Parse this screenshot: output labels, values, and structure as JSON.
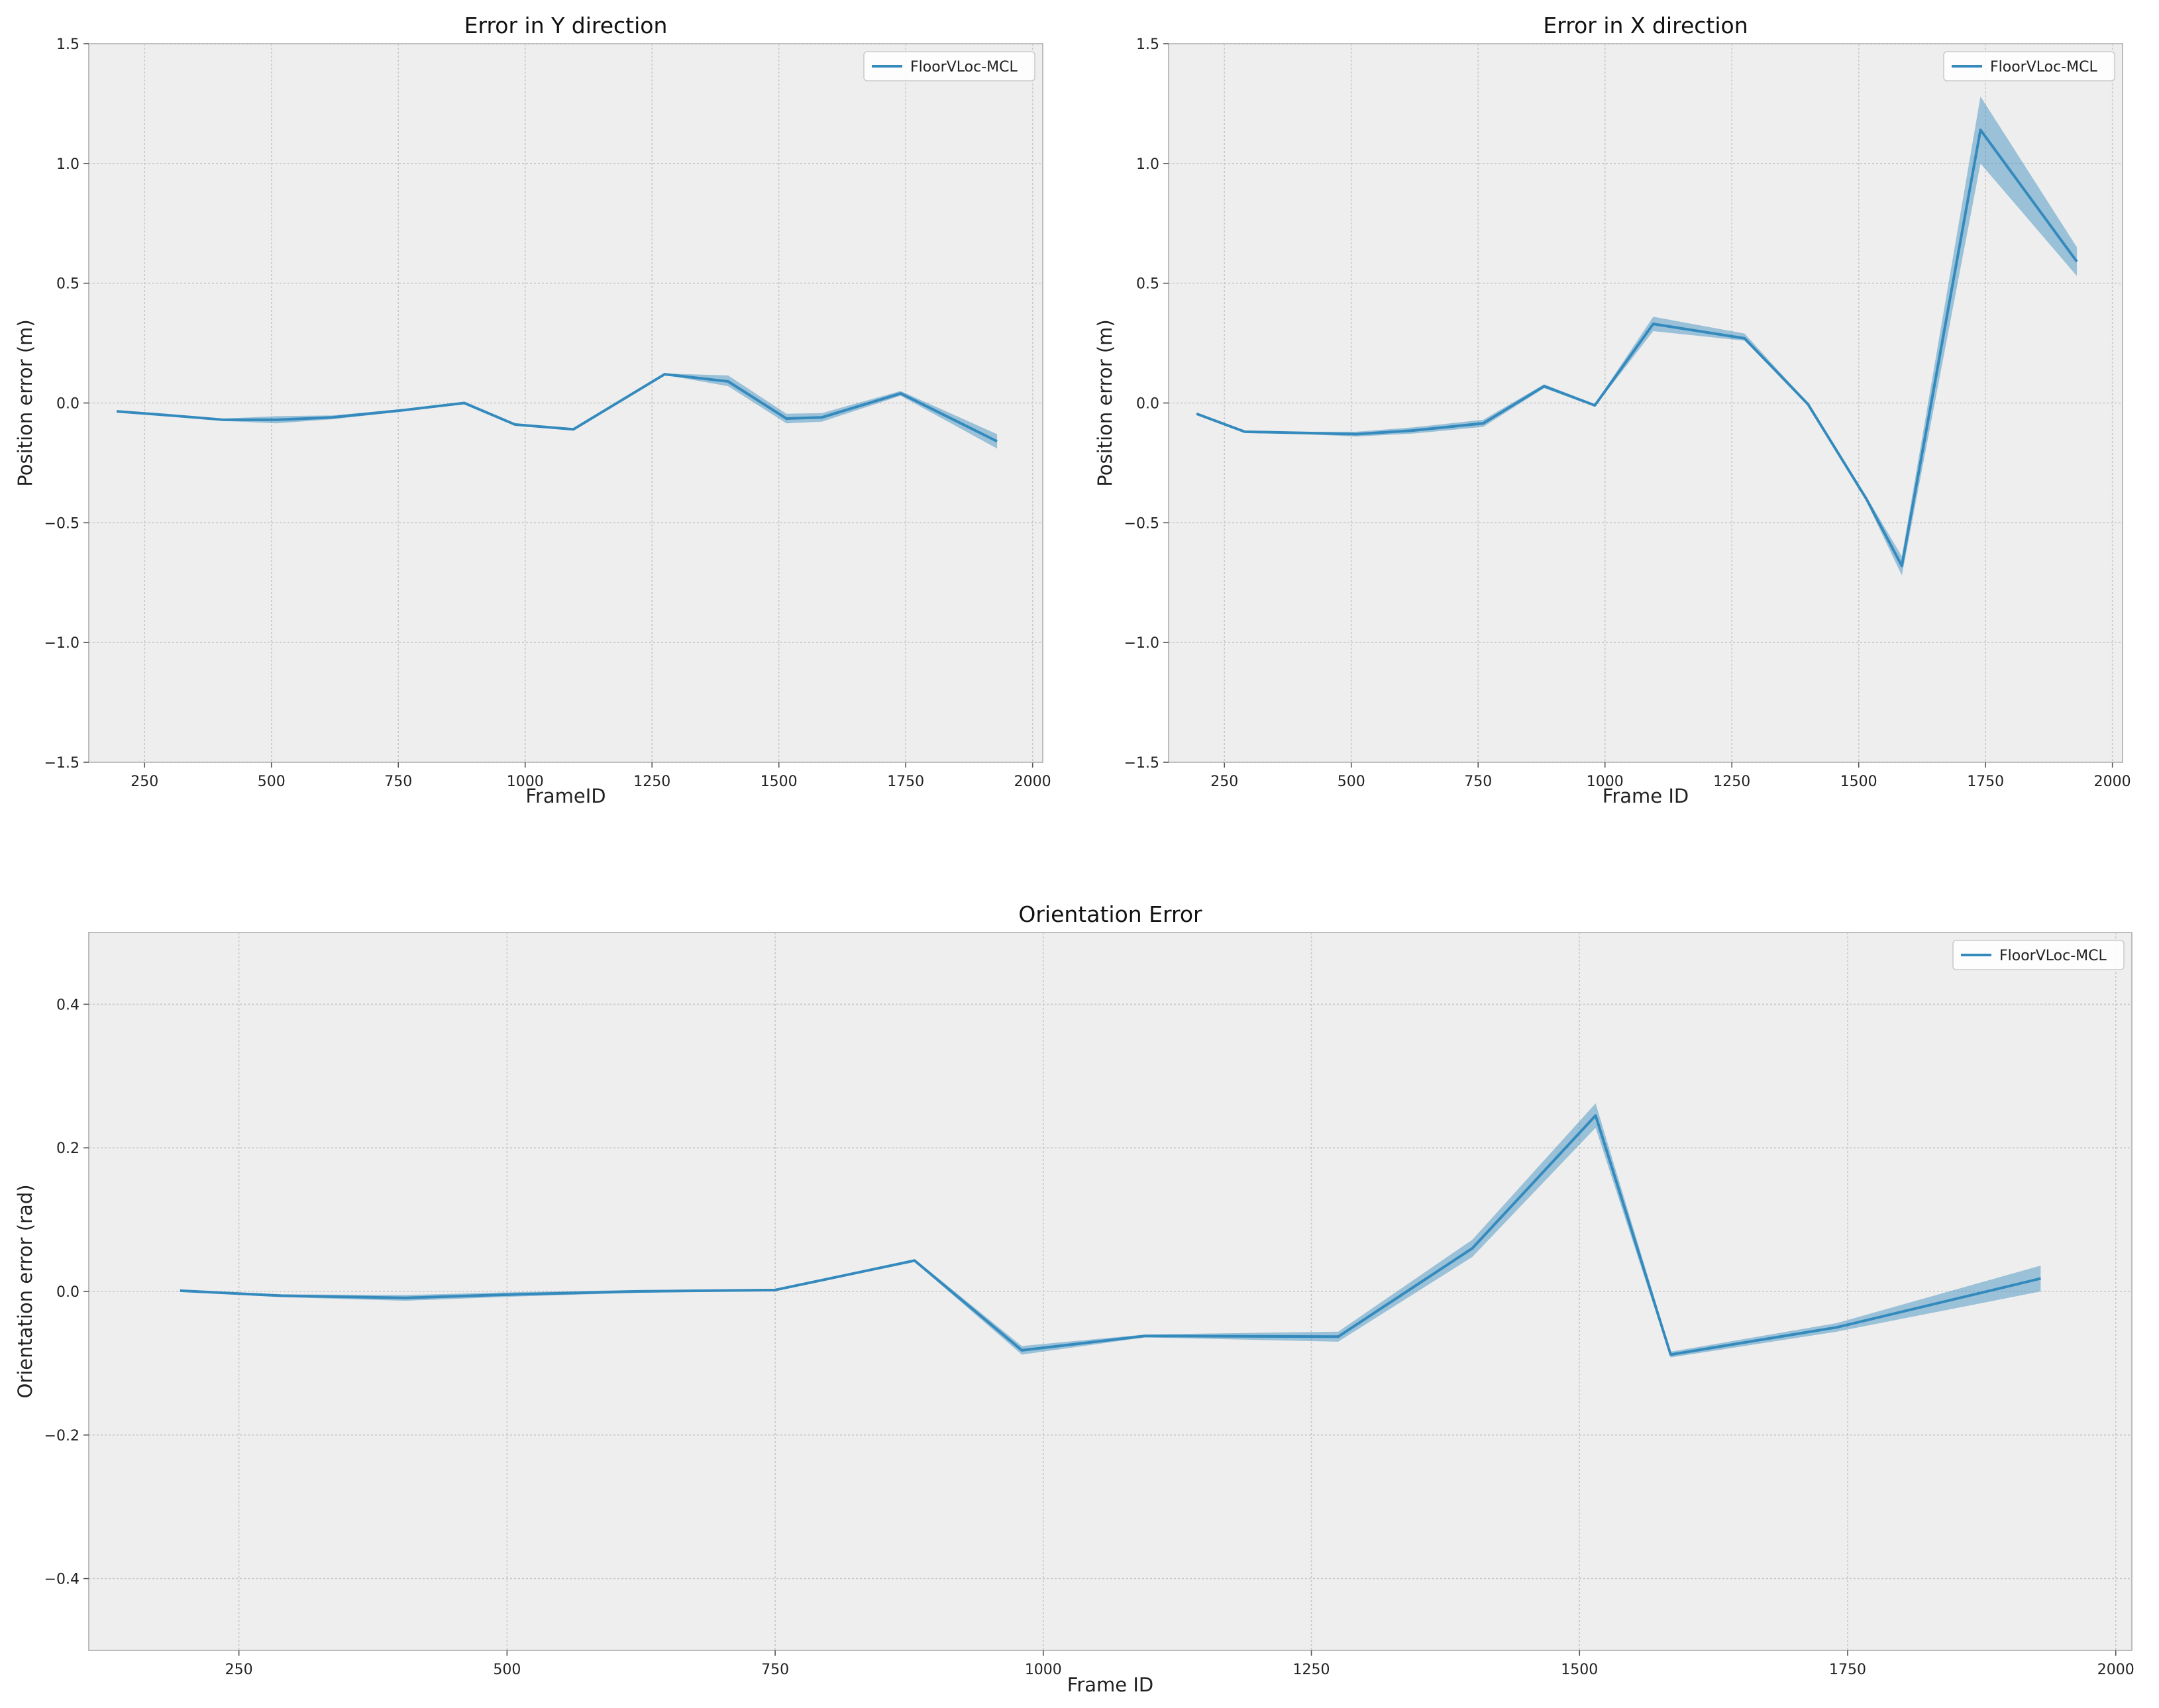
{
  "chart_data": [
    {
      "id": "y",
      "type": "line",
      "title": "Error in Y direction",
      "xlabel": "FrameID",
      "ylabel": "Position error (m)",
      "xlim": [
        140,
        2020
      ],
      "ylim": [
        -1.5,
        1.5
      ],
      "xticks": [
        250,
        500,
        750,
        1000,
        1250,
        1500,
        1750,
        2000
      ],
      "yticks": [
        -1.5,
        -1.0,
        -0.5,
        0.0,
        0.5,
        1.0,
        1.5
      ],
      "yticklabels": [
        "−1.5",
        "−1.0",
        "−0.5",
        "0.0",
        "0.5",
        "1.0",
        "1.5"
      ],
      "grid": true,
      "legend": "top-right",
      "series": [
        {
          "name": "FloorVLoc-MCL",
          "color": "#348ABD",
          "x": [
            195,
            290,
            405,
            510,
            620,
            760,
            880,
            980,
            1095,
            1275,
            1400,
            1515,
            1585,
            1740,
            1930
          ],
          "y": [
            -0.035,
            -0.05,
            -0.07,
            -0.07,
            -0.06,
            -0.03,
            0.0,
            -0.09,
            -0.11,
            0.12,
            0.09,
            -0.065,
            -0.06,
            0.04,
            -0.16
          ],
          "lower": [
            -0.037,
            -0.052,
            -0.075,
            -0.085,
            -0.068,
            -0.035,
            -0.005,
            -0.092,
            -0.113,
            0.117,
            0.07,
            -0.085,
            -0.078,
            0.03,
            -0.19
          ],
          "upper": [
            -0.033,
            -0.048,
            -0.065,
            -0.055,
            -0.052,
            -0.025,
            0.005,
            -0.088,
            -0.107,
            0.123,
            0.115,
            -0.045,
            -0.042,
            0.05,
            -0.13
          ]
        }
      ]
    },
    {
      "id": "x",
      "type": "line",
      "title": "Error in X direction",
      "xlabel": "Frame ID",
      "ylabel": "Position error (m)",
      "xlim": [
        140,
        2020
      ],
      "ylim": [
        -1.5,
        1.5
      ],
      "xticks": [
        250,
        500,
        750,
        1000,
        1250,
        1500,
        1750,
        2000
      ],
      "yticks": [
        -1.5,
        -1.0,
        -0.5,
        0.0,
        0.5,
        1.0,
        1.5
      ],
      "yticklabels": [
        "−1.5",
        "−1.0",
        "−0.5",
        "0.0",
        "0.5",
        "1.0",
        "1.5"
      ],
      "grid": true,
      "legend": "top-right",
      "series": [
        {
          "name": "FloorVLoc-MCL",
          "color": "#348ABD",
          "x": [
            195,
            290,
            405,
            510,
            620,
            760,
            880,
            980,
            1095,
            1275,
            1400,
            1515,
            1585,
            1740,
            1930
          ],
          "y": [
            -0.045,
            -0.12,
            -0.125,
            -0.13,
            -0.115,
            -0.085,
            0.07,
            -0.01,
            0.33,
            0.27,
            -0.005,
            -0.4,
            -0.68,
            1.14,
            0.59
          ],
          "lower": [
            -0.047,
            -0.123,
            -0.13,
            -0.14,
            -0.128,
            -0.1,
            0.062,
            -0.015,
            0.3,
            0.26,
            -0.01,
            -0.41,
            -0.72,
            1.0,
            0.53
          ],
          "upper": [
            -0.043,
            -0.117,
            -0.12,
            -0.12,
            -0.102,
            -0.07,
            0.078,
            -0.005,
            0.36,
            0.29,
            0.0,
            -0.39,
            -0.64,
            1.28,
            0.65
          ]
        }
      ]
    },
    {
      "id": "o",
      "type": "line",
      "title": "Orientation Error",
      "xlabel": "Frame ID",
      "ylabel": "Orientation error (rad)",
      "xlim": [
        110,
        2015
      ],
      "ylim": [
        -0.5,
        0.5
      ],
      "xticks": [
        250,
        500,
        750,
        1000,
        1250,
        1500,
        1750,
        2000
      ],
      "yticks": [
        -0.4,
        -0.2,
        0.0,
        0.2,
        0.4
      ],
      "yticklabels": [
        "−0.4",
        "−0.2",
        "0.0",
        "0.2",
        "0.4"
      ],
      "grid": true,
      "legend": "top-right",
      "series": [
        {
          "name": "FloorVLoc-MCL",
          "color": "#348ABD",
          "x": [
            195,
            290,
            405,
            510,
            620,
            750,
            880,
            980,
            1095,
            1275,
            1400,
            1515,
            1585,
            1740,
            1930
          ],
          "y": [
            0.001,
            -0.006,
            -0.009,
            -0.004,
            0.0,
            0.002,
            0.043,
            -0.082,
            -0.062,
            -0.063,
            0.06,
            0.245,
            -0.088,
            -0.05,
            0.018
          ],
          "lower": [
            0.0,
            -0.008,
            -0.013,
            -0.007,
            -0.002,
            0.001,
            0.041,
            -0.088,
            -0.064,
            -0.07,
            0.048,
            0.228,
            -0.092,
            -0.056,
            0.0
          ],
          "upper": [
            0.002,
            -0.004,
            -0.005,
            -0.001,
            0.002,
            0.003,
            0.045,
            -0.076,
            -0.06,
            -0.056,
            0.072,
            0.262,
            -0.084,
            -0.044,
            0.036
          ]
        }
      ]
    }
  ]
}
